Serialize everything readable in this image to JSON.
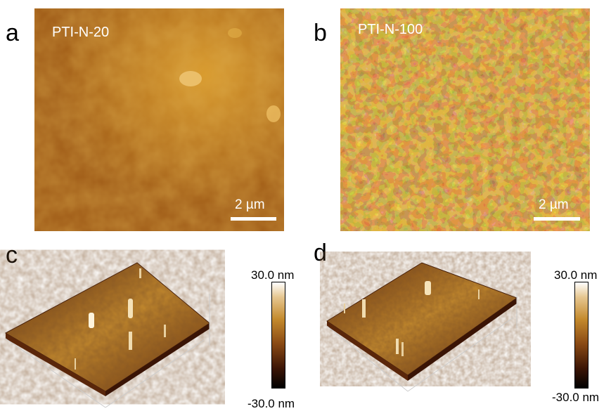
{
  "panels": {
    "a": {
      "letter": "a",
      "sample": "PTI-N-20",
      "scale": "2 µm"
    },
    "b": {
      "letter": "b",
      "sample": "PTI-N-100",
      "scale": "2 µm"
    },
    "c": {
      "letter": "c",
      "cbar_max": "30.0 nm",
      "cbar_min": "-30.0 nm"
    },
    "d": {
      "letter": "d",
      "cbar_max": "30.0 nm",
      "cbar_min": "-30.0 nm"
    }
  },
  "colors": {
    "afm_dark": "#3a1405",
    "afm_mid": "#b06c1e",
    "afm_light": "#e8b54a",
    "annotation": "#ffffff"
  }
}
